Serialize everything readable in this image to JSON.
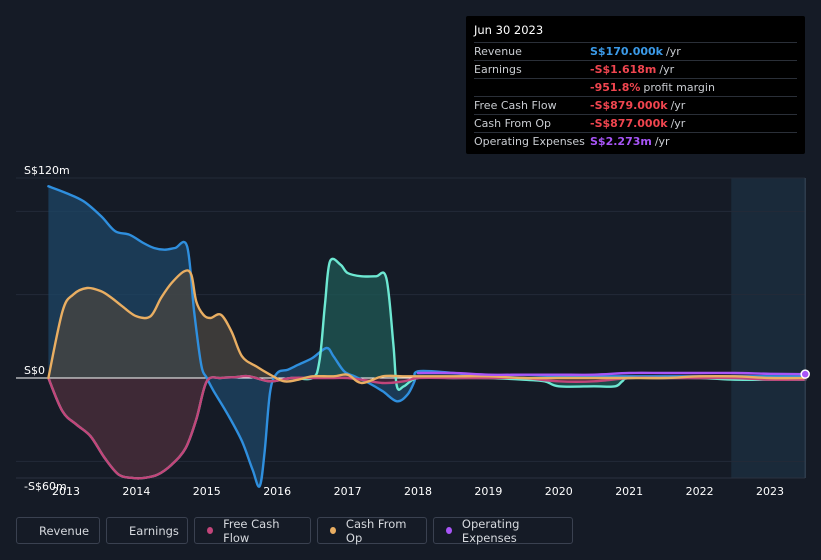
{
  "tooltip": {
    "date": "Jun 30 2023",
    "rows": [
      {
        "label": "Revenue",
        "value": "S$170.000k",
        "unit": "/yr",
        "color": "#3b9ae8"
      },
      {
        "label": "Earnings",
        "value": "-S$1.618m",
        "unit": "/yr",
        "color": "#f0454f"
      },
      {
        "label": "",
        "value": "-951.8%",
        "unit": "profit margin",
        "color": "#f0454f"
      },
      {
        "label": "Free Cash Flow",
        "value": "-S$879.000k",
        "unit": "/yr",
        "color": "#f0454f"
      },
      {
        "label": "Cash From Op",
        "value": "-S$877.000k",
        "unit": "/yr",
        "color": "#f0454f"
      },
      {
        "label": "Operating Expenses",
        "value": "S$2.273m",
        "unit": "/yr",
        "color": "#a855f7"
      }
    ]
  },
  "legend": [
    {
      "label": "Revenue",
      "color": "#2f8fde"
    },
    {
      "label": "Earnings",
      "color": "#6de8d2"
    },
    {
      "label": "Free Cash Flow",
      "color": "#c2457a"
    },
    {
      "label": "Cash From Op",
      "color": "#e9ae62"
    },
    {
      "label": "Operating Expenses",
      "color": "#a855f7"
    }
  ],
  "chart_data": {
    "type": "area",
    "title": "",
    "xlabel": "",
    "ylabel": "",
    "y_tick_labels": [
      {
        "value": 120,
        "label": "S$120m"
      },
      {
        "value": 0,
        "label": "S$0"
      },
      {
        "value": -60,
        "label": "-S$60m"
      }
    ],
    "ylim": [
      -72,
      120
    ],
    "xlim": [
      2012.3,
      2023.55
    ],
    "x_ticks": [
      2013,
      2014,
      2015,
      2016,
      2017,
      2018,
      2019,
      2020,
      2021,
      2022,
      2023
    ],
    "forecast_shade_start": 2022.45,
    "series": [
      {
        "name": "Revenue",
        "color": "#2f8fde",
        "fill": "#1e4566",
        "x": [
          2012.75,
          2013.0,
          2013.25,
          2013.5,
          2013.7,
          2013.9,
          2014.1,
          2014.25,
          2014.4,
          2014.55,
          2014.72,
          2014.82,
          2014.92,
          2015.0,
          2015.1,
          2015.3,
          2015.5,
          2015.65,
          2015.75,
          2015.82,
          2015.9,
          2016.0,
          2016.15,
          2016.3,
          2016.5,
          2016.7,
          2016.8,
          2016.95,
          2017.1,
          2017.3,
          2017.5,
          2017.7,
          2017.85,
          2017.95,
          2018.0,
          2018.5,
          2019.0,
          2019.5,
          2020.0,
          2020.5,
          2021.0,
          2021.5,
          2022.0,
          2022.5,
          2023.0,
          2023.5
        ],
        "y": [
          115,
          111,
          106,
          97,
          88,
          86,
          81,
          78,
          77,
          78,
          79,
          40,
          8,
          0,
          -8,
          -22,
          -38,
          -55,
          -65,
          -45,
          -8,
          3,
          5,
          8,
          12,
          18,
          13,
          4,
          1,
          -3,
          -8,
          -14,
          -10,
          -2,
          4,
          3,
          1,
          2,
          1,
          1,
          1,
          1,
          1,
          1,
          1,
          1
        ]
      },
      {
        "name": "Earnings",
        "color": "#6de8d2",
        "fill": "#1f5a55",
        "x": [
          2012.75,
          2012.95,
          2013.15,
          2013.35,
          2013.55,
          2013.75,
          2013.95,
          2014.1,
          2014.3,
          2014.5,
          2014.7,
          2014.85,
          2015.0,
          2015.2,
          2015.4,
          2015.6,
          2015.9,
          2016.2,
          2016.5,
          2016.6,
          2016.68,
          2016.75,
          2016.9,
          2017.0,
          2017.2,
          2017.4,
          2017.55,
          2017.65,
          2017.7,
          2017.8,
          2018.0,
          2018.5,
          2019.0,
          2019.5,
          2019.8,
          2020.0,
          2020.5,
          2020.8,
          2020.9,
          2021.0,
          2021.5,
          2022.0,
          2022.5,
          2023.0,
          2023.5
        ],
        "y": [
          0,
          -20,
          -28,
          -35,
          -48,
          -58,
          -60,
          -60,
          -58,
          -52,
          -42,
          -25,
          -2,
          0,
          0.5,
          1,
          -2,
          0,
          0,
          10,
          45,
          70,
          68,
          63,
          61,
          61,
          60,
          20,
          -5,
          -5,
          0,
          0,
          0,
          -1,
          -2,
          -5,
          -5,
          -5,
          -2,
          0,
          0,
          0,
          -1,
          -1,
          -1
        ]
      },
      {
        "name": "Free Cash Flow",
        "color": "#c2457a",
        "fill": "#4a1f30",
        "x": [
          2012.75,
          2012.95,
          2013.15,
          2013.35,
          2013.55,
          2013.75,
          2013.95,
          2014.1,
          2014.3,
          2014.5,
          2014.7,
          2014.85,
          2015.0,
          2015.2,
          2015.4,
          2015.6,
          2015.9,
          2016.2,
          2016.5,
          2016.8,
          2017.0,
          2017.2,
          2017.5,
          2017.8,
          2018.0,
          2018.5,
          2019.0,
          2019.5,
          2020.0,
          2020.5,
          2021.0,
          2021.5,
          2022.0,
          2022.5,
          2023.0,
          2023.5
        ],
        "y": [
          0,
          -20,
          -28,
          -35,
          -48,
          -58,
          -60,
          -60,
          -58,
          -52,
          -42,
          -25,
          -2,
          0,
          0.5,
          1,
          -2,
          0,
          0,
          0,
          0,
          -1,
          -3,
          -2,
          0,
          0,
          0,
          0,
          -2,
          -2,
          0,
          0,
          0,
          0,
          -1,
          -1
        ]
      },
      {
        "name": "Cash From Op",
        "color": "#e9ae62",
        "fill": "#4a4540",
        "x": [
          2012.75,
          2012.95,
          2013.1,
          2013.3,
          2013.5,
          2013.65,
          2013.8,
          2014.0,
          2014.2,
          2014.35,
          2014.5,
          2014.68,
          2014.78,
          2014.85,
          2014.95,
          2015.05,
          2015.2,
          2015.35,
          2015.5,
          2015.7,
          2015.9,
          2016.1,
          2016.3,
          2016.5,
          2016.8,
          2017.0,
          2017.2,
          2017.5,
          2017.8,
          2018.0,
          2018.5,
          2019.0,
          2019.5,
          2020.0,
          2020.5,
          2021.0,
          2021.5,
          2022.0,
          2022.5,
          2023.0,
          2023.5
        ],
        "y": [
          0,
          40,
          50,
          54,
          52,
          48,
          43,
          37,
          37,
          48,
          57,
          64,
          62,
          46,
          38,
          36,
          38,
          28,
          13,
          7,
          2,
          -2,
          -1,
          1,
          1,
          2,
          -3,
          1,
          1,
          1,
          1,
          1,
          0,
          0,
          0,
          0,
          0,
          1,
          1,
          0,
          0
        ]
      },
      {
        "name": "Operating Expenses",
        "color": "#a855f7",
        "fill": "none",
        "x": [
          2018.0,
          2018.5,
          2019.0,
          2019.5,
          2020.0,
          2020.5,
          2021.0,
          2021.5,
          2022.0,
          2022.5,
          2023.0,
          2023.5
        ],
        "y": [
          3,
          3,
          2,
          2,
          2,
          2,
          3,
          3,
          3,
          3,
          2.5,
          2.3
        ]
      }
    ]
  }
}
